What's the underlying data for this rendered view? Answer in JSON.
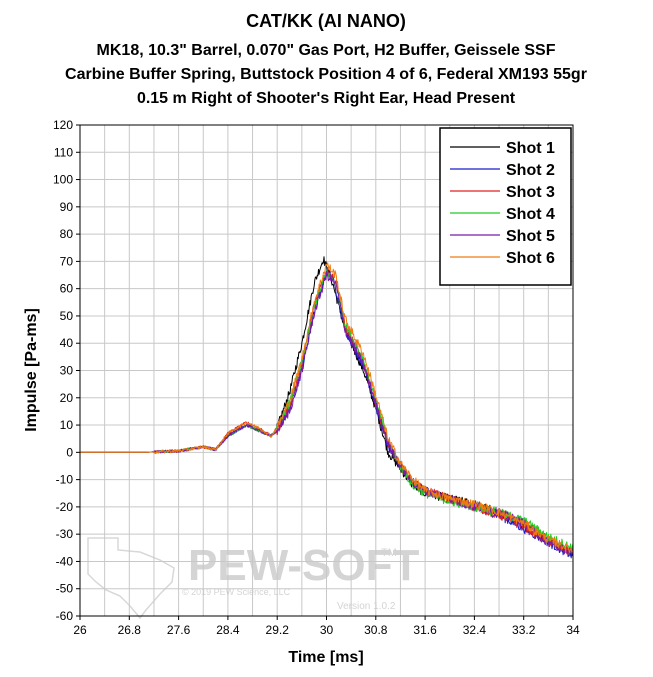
{
  "chart_data": {
    "type": "line",
    "title": "CAT/KK (AI NANO)",
    "subtitle_lines": [
      "MK18, 10.3\" Barrel, 0.070\" Gas Port, H2 Buffer, Geissele SSF",
      "Carbine Buffer Spring, Buttstock Position 4 of 6, Federal XM193 55gr",
      "0.15 m Right of Shooter's Right Ear, Head Present"
    ],
    "xlabel": "Time [ms]",
    "ylabel": "Impulse [Pa-ms]",
    "xlim": [
      26,
      34
    ],
    "ylim": [
      -60,
      120
    ],
    "xticks": [
      "26",
      "26.8",
      "27.6",
      "28.4",
      "29.2",
      "30",
      "30.8",
      "31.6",
      "32.4",
      "33.2",
      "34"
    ],
    "yticks": [
      "120",
      "110",
      "100",
      "90",
      "80",
      "70",
      "60",
      "50",
      "40",
      "30",
      "20",
      "10",
      "0",
      "-10",
      "-20",
      "-30",
      "-40",
      "-50",
      "-60"
    ],
    "grid": true,
    "legend_position": "top-right",
    "series": [
      {
        "name": "Shot 1",
        "color": "#000000",
        "points": [
          [
            26,
            0
          ],
          [
            27,
            0
          ],
          [
            27.6,
            0.5
          ],
          [
            28,
            2
          ],
          [
            28.2,
            1
          ],
          [
            28.4,
            6
          ],
          [
            28.7,
            10
          ],
          [
            28.9,
            8
          ],
          [
            29.1,
            6
          ],
          [
            29.2,
            9
          ],
          [
            29.4,
            22
          ],
          [
            29.6,
            40
          ],
          [
            29.8,
            62
          ],
          [
            29.95,
            71
          ],
          [
            30.1,
            62
          ],
          [
            30.3,
            45
          ],
          [
            30.6,
            30
          ],
          [
            30.8,
            16
          ],
          [
            31,
            0
          ],
          [
            31.2,
            -6
          ],
          [
            31.4,
            -12
          ],
          [
            31.6,
            -15
          ],
          [
            32.0,
            -17
          ],
          [
            32.4,
            -19
          ],
          [
            32.8,
            -22
          ],
          [
            33.2,
            -26
          ],
          [
            33.6,
            -32
          ],
          [
            34,
            -37
          ]
        ]
      },
      {
        "name": "Shot 2",
        "color": "#1a1acc",
        "points": [
          [
            26,
            0
          ],
          [
            27,
            0
          ],
          [
            27.6,
            0.5
          ],
          [
            28,
            2
          ],
          [
            28.2,
            1
          ],
          [
            28.4,
            6
          ],
          [
            28.7,
            10
          ],
          [
            28.9,
            8
          ],
          [
            29.1,
            6
          ],
          [
            29.2,
            8
          ],
          [
            29.4,
            16
          ],
          [
            29.6,
            30
          ],
          [
            29.8,
            52
          ],
          [
            30.0,
            66
          ],
          [
            30.1,
            64
          ],
          [
            30.3,
            45
          ],
          [
            30.6,
            32
          ],
          [
            30.8,
            17
          ],
          [
            31,
            2
          ],
          [
            31.2,
            -5
          ],
          [
            31.4,
            -11
          ],
          [
            31.6,
            -14
          ],
          [
            32.0,
            -17
          ],
          [
            32.4,
            -20
          ],
          [
            32.8,
            -23
          ],
          [
            33.2,
            -28
          ],
          [
            33.6,
            -33
          ],
          [
            34,
            -38
          ]
        ]
      },
      {
        "name": "Shot 3",
        "color": "#e02020",
        "points": [
          [
            26,
            0
          ],
          [
            27,
            0
          ],
          [
            27.6,
            0.5
          ],
          [
            28,
            2
          ],
          [
            28.2,
            1
          ],
          [
            28.4,
            7
          ],
          [
            28.7,
            11
          ],
          [
            28.9,
            9
          ],
          [
            29.1,
            6
          ],
          [
            29.2,
            8
          ],
          [
            29.4,
            17
          ],
          [
            29.6,
            32
          ],
          [
            29.8,
            54
          ],
          [
            30.0,
            67
          ],
          [
            30.15,
            63
          ],
          [
            30.3,
            46
          ],
          [
            30.6,
            33
          ],
          [
            30.8,
            18
          ],
          [
            31,
            3
          ],
          [
            31.2,
            -5
          ],
          [
            31.4,
            -11
          ],
          [
            31.6,
            -14
          ],
          [
            32.0,
            -17
          ],
          [
            32.4,
            -20
          ],
          [
            32.8,
            -23
          ],
          [
            33.2,
            -27
          ],
          [
            33.6,
            -33
          ],
          [
            34,
            -37
          ]
        ]
      },
      {
        "name": "Shot 4",
        "color": "#22cc22",
        "points": [
          [
            26,
            0
          ],
          [
            27,
            0
          ],
          [
            27.6,
            0.5
          ],
          [
            28,
            2
          ],
          [
            28.2,
            1
          ],
          [
            28.4,
            6
          ],
          [
            28.7,
            10
          ],
          [
            28.9,
            8
          ],
          [
            29.1,
            6
          ],
          [
            29.2,
            9
          ],
          [
            29.4,
            18
          ],
          [
            29.6,
            33
          ],
          [
            29.8,
            53
          ],
          [
            30.0,
            66
          ],
          [
            30.15,
            62
          ],
          [
            30.3,
            47
          ],
          [
            30.6,
            34
          ],
          [
            30.8,
            19
          ],
          [
            31,
            4
          ],
          [
            31.2,
            -5
          ],
          [
            31.4,
            -12
          ],
          [
            31.6,
            -15
          ],
          [
            32.0,
            -18
          ],
          [
            32.4,
            -20
          ],
          [
            32.8,
            -22
          ],
          [
            33.2,
            -25
          ],
          [
            33.6,
            -31
          ],
          [
            34,
            -35
          ]
        ]
      },
      {
        "name": "Shot 5",
        "color": "#7a1aaa",
        "points": [
          [
            26,
            0
          ],
          [
            27,
            0
          ],
          [
            27.6,
            0.5
          ],
          [
            28,
            2
          ],
          [
            28.2,
            1
          ],
          [
            28.4,
            6
          ],
          [
            28.7,
            10
          ],
          [
            28.9,
            8
          ],
          [
            29.1,
            6
          ],
          [
            29.2,
            8
          ],
          [
            29.4,
            15
          ],
          [
            29.6,
            30
          ],
          [
            29.8,
            51
          ],
          [
            30.0,
            65
          ],
          [
            30.15,
            62
          ],
          [
            30.3,
            45
          ],
          [
            30.6,
            32
          ],
          [
            30.8,
            18
          ],
          [
            31,
            3
          ],
          [
            31.2,
            -5
          ],
          [
            31.4,
            -11
          ],
          [
            31.6,
            -14
          ],
          [
            32.0,
            -17
          ],
          [
            32.4,
            -20
          ],
          [
            32.8,
            -22
          ],
          [
            33.2,
            -26
          ],
          [
            33.6,
            -33
          ],
          [
            34,
            -37
          ]
        ]
      },
      {
        "name": "Shot 6",
        "color": "#f07a10",
        "points": [
          [
            26,
            0
          ],
          [
            27,
            0
          ],
          [
            27.6,
            0.5
          ],
          [
            28,
            2
          ],
          [
            28.2,
            1
          ],
          [
            28.4,
            7
          ],
          [
            28.7,
            11
          ],
          [
            28.9,
            9
          ],
          [
            29.1,
            6
          ],
          [
            29.2,
            9
          ],
          [
            29.4,
            19
          ],
          [
            29.6,
            34
          ],
          [
            29.8,
            55
          ],
          [
            30.0,
            69
          ],
          [
            30.15,
            65
          ],
          [
            30.3,
            49
          ],
          [
            30.6,
            36
          ],
          [
            30.8,
            21
          ],
          [
            31,
            5
          ],
          [
            31.2,
            -4
          ],
          [
            31.4,
            -10
          ],
          [
            31.6,
            -14
          ],
          [
            32.0,
            -17
          ],
          [
            32.4,
            -19
          ],
          [
            32.8,
            -22
          ],
          [
            33.2,
            -26
          ],
          [
            33.6,
            -32
          ],
          [
            34,
            -36
          ]
        ]
      }
    ]
  },
  "watermark": {
    "brand": "PEW-SOFT",
    "trademark": "TM",
    "copyright": "© 2019 PEW Science, LLC",
    "version": "Version 1.0.2"
  }
}
